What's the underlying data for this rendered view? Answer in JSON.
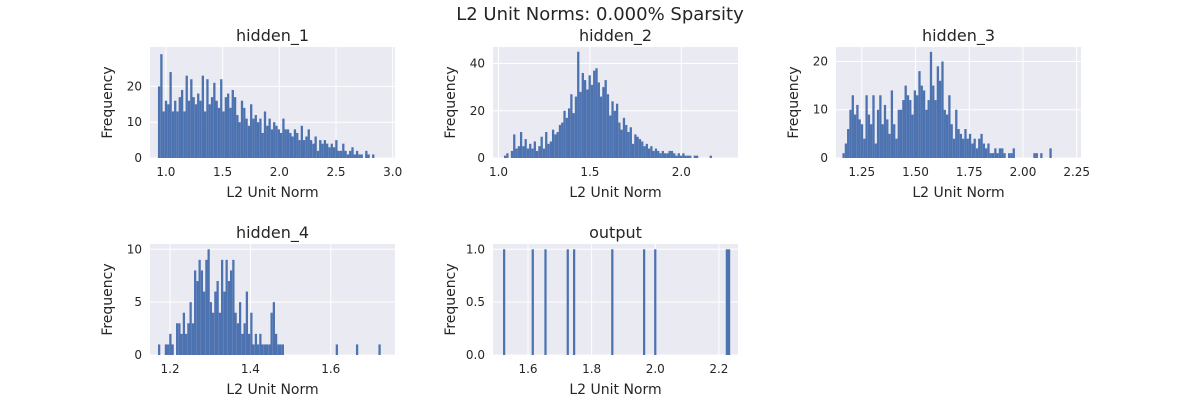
{
  "figure_title": "L2 Unit Norms: 0.000% Sparsity",
  "colors": {
    "bar": "#4c72b0",
    "plot_bg": "#eaeaf2",
    "grid": "#ffffff",
    "text": "#262626"
  },
  "chart_data": [
    {
      "type": "bar",
      "title": "hidden_1",
      "xlabel": "L2 Unit Norm",
      "ylabel": "Frequency",
      "xlim": [
        0.86,
        3.02
      ],
      "ylim": [
        0,
        31
      ],
      "xticks": [
        1.0,
        1.5,
        2.0,
        2.5,
        3.0
      ],
      "xtick_labels": [
        "1.0",
        "1.5",
        "2.0",
        "2.5",
        "3.0"
      ],
      "yticks": [
        0,
        10,
        20
      ],
      "bin_start": 0.93,
      "bin_width": 0.0203,
      "values": [
        20,
        29,
        13,
        16,
        15,
        24,
        13,
        16,
        13,
        17,
        19,
        13,
        23,
        16,
        22,
        17,
        15,
        18,
        16,
        23,
        13,
        22,
        15,
        17,
        21,
        16,
        14,
        22,
        13,
        17,
        18,
        14,
        19,
        17,
        12,
        10,
        16,
        14,
        11,
        9,
        15,
        11,
        12,
        10,
        11,
        7,
        13,
        9,
        11,
        8,
        10,
        9,
        8,
        7,
        11,
        8,
        8,
        7,
        6,
        8,
        7,
        5,
        9,
        5,
        6,
        8,
        5,
        4,
        6,
        2,
        5,
        4,
        5,
        4,
        3,
        4,
        3,
        5,
        2,
        2,
        4,
        2,
        1,
        2,
        3,
        1,
        2,
        1,
        1,
        0,
        2,
        1,
        0,
        1,
        0,
        0,
        0,
        0,
        0,
        0
      ]
    },
    {
      "type": "bar",
      "title": "hidden_2",
      "xlabel": "L2 Unit Norm",
      "ylabel": "Frequency",
      "xlim": [
        0.97,
        2.31
      ],
      "ylim": [
        0,
        47
      ],
      "xticks": [
        1.0,
        1.5,
        2.0
      ],
      "xtick_labels": [
        "1.0",
        "1.5",
        "2.0"
      ],
      "yticks": [
        0,
        20,
        40
      ],
      "bin_start": 1.03,
      "bin_width": 0.0125,
      "values": [
        1,
        2,
        0,
        3,
        10,
        4,
        5,
        11,
        5,
        8,
        4,
        6,
        4,
        7,
        3,
        5,
        9,
        4,
        11,
        6,
        7,
        12,
        10,
        11,
        14,
        15,
        20,
        17,
        21,
        27,
        19,
        26,
        45,
        28,
        36,
        33,
        29,
        35,
        31,
        37,
        38,
        32,
        26,
        30,
        33,
        27,
        18,
        24,
        20,
        23,
        15,
        12,
        17,
        14,
        11,
        13,
        6,
        10,
        9,
        8,
        7,
        5,
        6,
        4,
        5,
        3,
        4,
        3,
        2,
        3,
        2,
        2,
        3,
        3,
        2,
        1,
        2,
        1,
        2,
        1,
        1,
        1,
        0,
        1,
        1,
        0,
        0,
        0,
        0,
        0,
        1,
        0,
        0,
        0,
        0,
        0,
        0,
        0,
        0,
        0
      ]
    },
    {
      "type": "bar",
      "title": "hidden_3",
      "xlabel": "L2 Unit Norm",
      "ylabel": "Frequency",
      "xlim": [
        1.13,
        2.27
      ],
      "ylim": [
        0,
        23
      ],
      "xticks": [
        1.25,
        1.5,
        1.75,
        2.0,
        2.25
      ],
      "xtick_labels": [
        "1.25",
        "1.50",
        "1.75",
        "2.00",
        "2.25"
      ],
      "yticks": [
        0,
        10,
        20
      ],
      "bin_start": 1.16,
      "bin_width": 0.0107,
      "values": [
        1,
        3,
        6,
        10,
        13,
        9,
        11,
        8,
        7,
        4,
        13,
        9,
        7,
        13,
        3,
        10,
        13,
        7,
        11,
        8,
        5,
        14,
        7,
        4,
        10,
        10,
        12,
        15,
        13,
        12,
        9,
        14,
        13,
        18,
        15,
        14,
        10,
        12,
        22,
        15,
        12,
        19,
        16,
        20,
        10,
        9,
        13,
        7,
        4,
        10,
        6,
        5,
        4,
        6,
        4,
        5,
        3,
        4,
        2,
        4,
        5,
        3,
        2,
        3,
        1,
        1,
        2,
        1,
        2,
        2,
        1,
        0,
        1,
        1,
        2,
        0,
        0,
        0,
        0,
        0,
        0,
        0,
        0,
        1,
        1,
        0,
        1,
        0,
        0,
        0,
        2,
        0,
        0,
        0,
        0,
        0,
        0,
        0,
        0,
        0
      ]
    },
    {
      "type": "bar",
      "title": "hidden_4",
      "xlabel": "L2 Unit Norm",
      "ylabel": "Frequency",
      "xlim": [
        1.15,
        1.76
      ],
      "ylim": [
        0,
        10.5
      ],
      "xticks": [
        1.2,
        1.4,
        1.6
      ],
      "xtick_labels": [
        "1.2",
        "1.4",
        "1.6"
      ],
      "yticks": [
        0,
        5,
        10
      ],
      "bin_start": 1.17,
      "bin_width": 0.0056,
      "values": [
        1,
        0,
        0,
        1,
        1,
        2,
        1,
        0,
        3,
        3,
        2,
        4,
        2,
        3,
        5,
        3,
        8,
        7,
        9,
        8,
        6,
        9,
        10,
        5,
        4,
        6,
        7,
        4,
        9,
        6,
        9,
        7,
        8,
        9,
        4,
        3,
        5,
        2,
        3,
        6,
        2,
        4,
        1,
        2,
        1,
        2,
        1,
        1,
        1,
        1,
        4,
        5,
        2,
        1,
        1,
        1,
        0,
        0,
        0,
        0,
        0,
        0,
        0,
        0,
        0,
        0,
        0,
        0,
        0,
        0,
        0,
        0,
        0,
        0,
        0,
        0,
        0,
        0,
        0,
        1,
        0,
        0,
        0,
        0,
        0,
        0,
        0,
        0,
        1,
        0,
        0,
        0,
        0,
        0,
        0,
        0,
        0,
        0,
        1,
        0
      ]
    },
    {
      "type": "bar",
      "title": "output",
      "xlabel": "L2 Unit Norm",
      "ylabel": "Frequency",
      "xlim": [
        1.49,
        2.26
      ],
      "ylim": [
        0,
        1.05
      ],
      "xticks": [
        1.6,
        1.8,
        2.0,
        2.2
      ],
      "xtick_labels": [
        "1.6",
        "1.8",
        "2.0",
        "2.2"
      ],
      "yticks": [
        0,
        0.5,
        1
      ],
      "ytick_labels": [
        "0.0",
        "0.5",
        "1.0"
      ],
      "bin_width": 0.007,
      "bars": [
        {
          "x": 1.525,
          "value": 1
        },
        {
          "x": 1.615,
          "value": 1
        },
        {
          "x": 1.655,
          "value": 1
        },
        {
          "x": 1.725,
          "value": 1
        },
        {
          "x": 1.745,
          "value": 1
        },
        {
          "x": 1.865,
          "value": 1
        },
        {
          "x": 1.965,
          "value": 1
        },
        {
          "x": 2.0,
          "value": 1
        },
        {
          "x": 2.225,
          "value": 1
        },
        {
          "x": 2.232,
          "value": 1
        }
      ]
    }
  ]
}
